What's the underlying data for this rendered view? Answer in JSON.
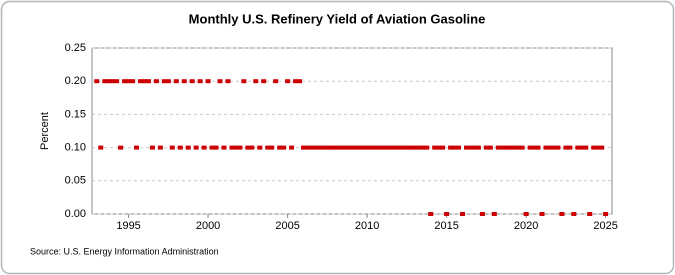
{
  "chart_data": {
    "type": "scatter",
    "title": "Monthly U.S. Refinery Yield of Aviation Gasoline",
    "y_label": "Percent",
    "source": "Source: U.S. Energy Information Administration",
    "color": "#cc0000",
    "grid": true,
    "xlim": [
      1992.7,
      2025.4
    ],
    "ylim": [
      0,
      0.25
    ],
    "xticks": [
      1995,
      2000,
      2005,
      2010,
      2015,
      2020,
      2025
    ],
    "yticks": [
      {
        "value": 0,
        "label": "0.00"
      },
      {
        "value": 0.05,
        "label": "0.05"
      },
      {
        "value": 0.1,
        "label": "0.10"
      },
      {
        "value": 0.15,
        "label": "0.15"
      },
      {
        "value": 0.2,
        "label": "0.20"
      },
      {
        "value": 0.25,
        "label": "0.25"
      }
    ],
    "x": [
      1993,
      1993.25,
      1993.5,
      1993.75,
      1994,
      1994.25,
      1994.5,
      1994.75,
      1995,
      1995.25,
      1995.5,
      1995.75,
      1996,
      1996.25,
      1996.5,
      1996.75,
      1997,
      1997.25,
      1997.5,
      1997.75,
      1998,
      1998.25,
      1998.5,
      1998.75,
      1999,
      1999.25,
      1999.5,
      1999.75,
      2000,
      2000.25,
      2000.5,
      2000.75,
      2001,
      2001.25,
      2001.5,
      2001.75,
      2002,
      2002.25,
      2002.5,
      2002.75,
      2003,
      2003.25,
      2003.5,
      2003.75,
      2004,
      2004.25,
      2004.5,
      2004.75,
      2005,
      2005.25,
      2005.5,
      2005.75,
      2006,
      2006.25,
      2006.5,
      2006.75,
      2007,
      2007.25,
      2007.5,
      2007.75,
      2008,
      2008.25,
      2008.5,
      2008.75,
      2009,
      2009.25,
      2009.5,
      2009.75,
      2010,
      2010.25,
      2010.5,
      2010.75,
      2011,
      2011.25,
      2011.5,
      2011.75,
      2012,
      2012.25,
      2012.5,
      2012.75,
      2013,
      2013.25,
      2013.5,
      2013.75,
      2014,
      2014.25,
      2014.5,
      2014.75,
      2015,
      2015.25,
      2015.5,
      2015.75,
      2016,
      2016.25,
      2016.5,
      2016.75,
      2017,
      2017.25,
      2017.5,
      2017.75,
      2018,
      2018.25,
      2018.5,
      2018.75,
      2019,
      2019.25,
      2019.5,
      2019.75,
      2020,
      2020.25,
      2020.5,
      2020.75,
      2021,
      2021.25,
      2021.5,
      2021.75,
      2022,
      2022.25,
      2022.5,
      2022.75,
      2023,
      2023.25,
      2023.5,
      2023.75,
      2024,
      2024.25,
      2024.5,
      2024.75,
      2025
    ],
    "values": [
      0.2,
      0.1,
      0.2,
      0.2,
      0.2,
      0.2,
      0.1,
      0.2,
      0.2,
      0.2,
      0.1,
      0.2,
      0.2,
      0.2,
      0.1,
      0.2,
      0.1,
      0.2,
      0.2,
      0.1,
      0.2,
      0.1,
      0.2,
      0.1,
      0.2,
      0.1,
      0.2,
      0.1,
      0.2,
      0.1,
      0.1,
      0.2,
      0.1,
      0.2,
      0.1,
      0.1,
      0.1,
      0.2,
      0.1,
      0.1,
      0.2,
      0.1,
      0.2,
      0.1,
      0.1,
      0.2,
      0.1,
      0.1,
      0.2,
      0.1,
      0.2,
      0.2,
      0.1,
      0.1,
      0.1,
      0.1,
      0.1,
      0.1,
      0.1,
      0.1,
      0.1,
      0.1,
      0.1,
      0.1,
      0.1,
      0.1,
      0.1,
      0.1,
      0.1,
      0.1,
      0.1,
      0.1,
      0.1,
      0.1,
      0.1,
      0.1,
      0.1,
      0.1,
      0.1,
      0.1,
      0.1,
      0.1,
      0.1,
      0.1,
      0,
      0.1,
      0.1,
      0.1,
      0,
      0.1,
      0.1,
      0.1,
      0,
      0.1,
      0.1,
      0.1,
      0.1,
      0,
      0.1,
      0.1,
      0,
      0.1,
      0.1,
      0.1,
      0.1,
      0.1,
      0.1,
      0.1,
      0,
      0.1,
      0.1,
      0.1,
      0,
      0.1,
      0.1,
      0.1,
      0.1,
      0,
      0.1,
      0.1,
      0,
      0.1,
      0.1,
      0.1,
      0,
      0.1,
      0.1,
      0.1,
      0
    ]
  }
}
